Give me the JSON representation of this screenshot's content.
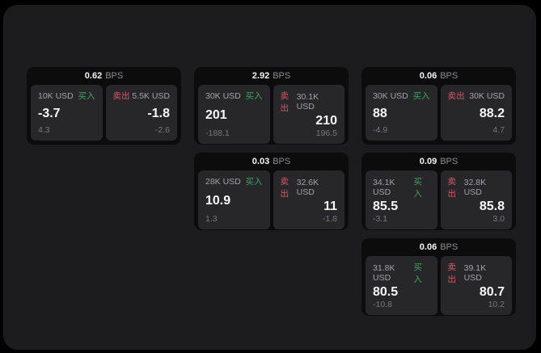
{
  "labels": {
    "bps": "BPS",
    "buy": "买入",
    "sell": "卖出"
  },
  "colors": {
    "page_bg": "#000000",
    "panel_bg": "#1c1c1e",
    "card_bg": "#0c0c0d",
    "tile_bg": "#27272a",
    "buy_accent": "#3ea35f",
    "sell_accent": "#d8566b"
  },
  "cards": [
    {
      "bps": "0.62",
      "buy": {
        "amount": "10K USD",
        "price": "-3.7",
        "change": "4.3"
      },
      "sell": {
        "amount": "5.5K USD",
        "price": "-1.8",
        "change": "-2.6"
      }
    },
    {
      "bps": "2.92",
      "buy": {
        "amount": "30K USD",
        "price": "201",
        "change": "-188.1"
      },
      "sell": {
        "amount": "30.1K USD",
        "price": "210",
        "change": "196.5"
      }
    },
    {
      "bps": "0.06",
      "buy": {
        "amount": "30K USD",
        "price": "88",
        "change": "-4.9"
      },
      "sell": {
        "amount": "30K USD",
        "price": "88.2",
        "change": "4.7"
      }
    },
    {
      "bps": "0.03",
      "buy": {
        "amount": "28K USD",
        "price": "10.9",
        "change": "1.3"
      },
      "sell": {
        "amount": "32.6K USD",
        "price": "11",
        "change": "-1.8"
      }
    },
    {
      "bps": "0.09",
      "buy": {
        "amount": "34.1K USD",
        "price": "85.5",
        "change": "-3.1"
      },
      "sell": {
        "amount": "32.8K USD",
        "price": "85.8",
        "change": "3.0"
      }
    },
    {
      "bps": "0.06",
      "buy": {
        "amount": "31.8K USD",
        "price": "80.5",
        "change": "-10.8"
      },
      "sell": {
        "amount": "39.1K USD",
        "price": "80.7",
        "change": "10.2"
      }
    }
  ]
}
